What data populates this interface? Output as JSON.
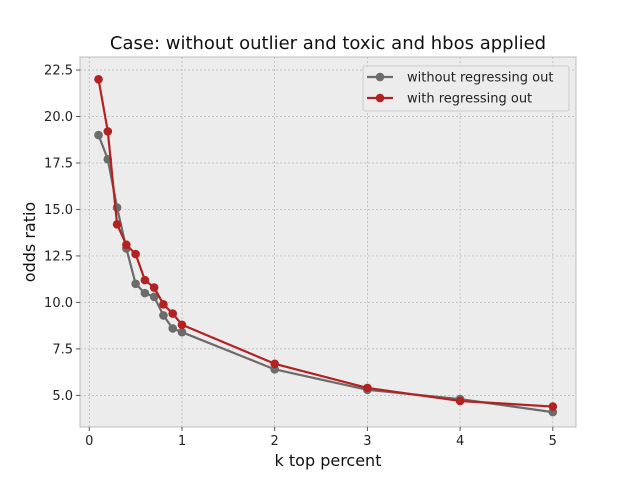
{
  "chart_data": {
    "type": "line",
    "title": "Case: without outlier and toxic and hbos applied",
    "xlabel": "k top percent",
    "ylabel": "odds ratio",
    "xlim": [
      -0.1,
      5.25
    ],
    "ylim": [
      3.3,
      23.2
    ],
    "xticks": [
      0,
      1,
      2,
      3,
      4,
      5
    ],
    "xtick_labels": [
      "0",
      "1",
      "2",
      "3",
      "4",
      "5"
    ],
    "yticks": [
      5.0,
      7.5,
      10.0,
      12.5,
      15.0,
      17.5,
      20.0,
      22.5
    ],
    "ytick_labels": [
      "5.0",
      "7.5",
      "10.0",
      "12.5",
      "15.0",
      "17.5",
      "20.0",
      "22.5"
    ],
    "grid": true,
    "legend_position": "top-right",
    "x": [
      0.1,
      0.2,
      0.3,
      0.4,
      0.5,
      0.6,
      0.7,
      0.8,
      0.9,
      1.0,
      2.0,
      3.0,
      4.0,
      5.0
    ],
    "series": [
      {
        "name": "without regressing out",
        "color": "#6b6b6b",
        "values": [
          19.0,
          17.7,
          15.1,
          12.9,
          11.0,
          10.5,
          10.3,
          9.3,
          8.6,
          8.4,
          6.4,
          5.3,
          4.8,
          4.1
        ]
      },
      {
        "name": "with regressing out",
        "color": "#b22222",
        "values": [
          22.0,
          19.2,
          14.2,
          13.1,
          12.6,
          11.2,
          10.8,
          9.9,
          9.4,
          8.8,
          6.7,
          5.4,
          4.7,
          4.4
        ]
      }
    ]
  }
}
